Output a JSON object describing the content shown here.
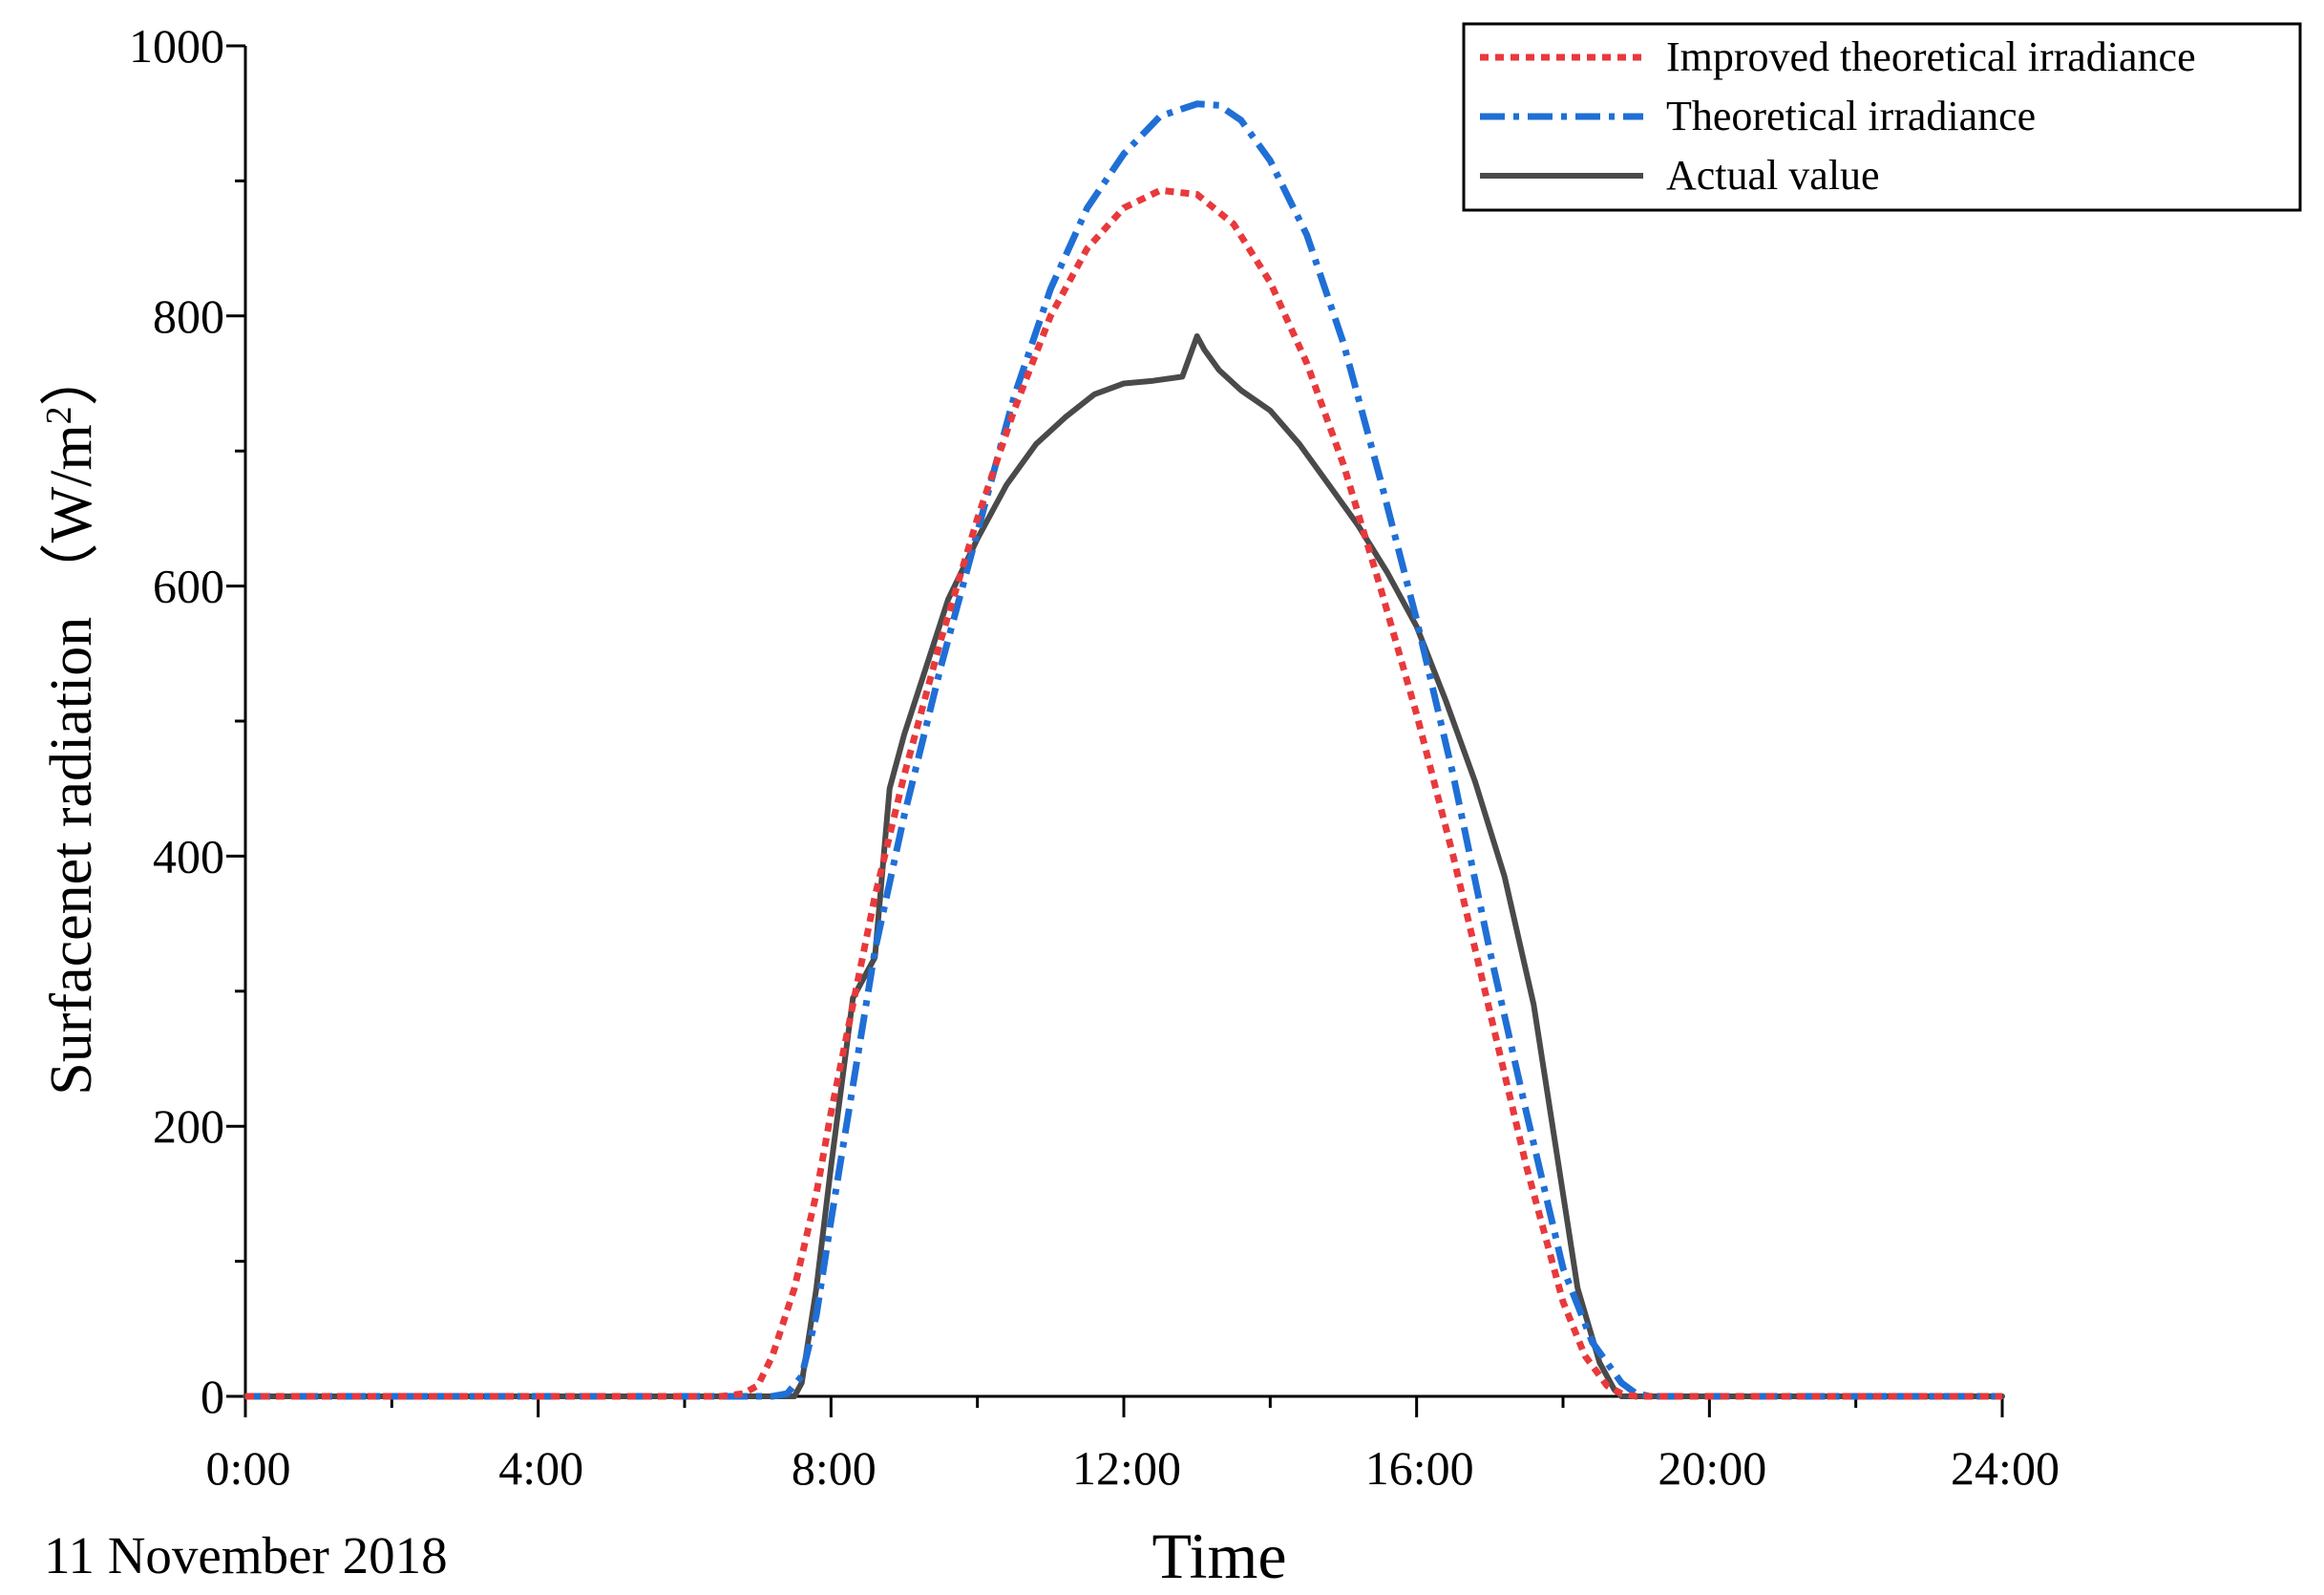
{
  "chart_data": {
    "type": "line",
    "title": "",
    "xlabel": "Time",
    "ylabel": "Surfacenet radiation",
    "ylabel_unit_open": "（W/m",
    "ylabel_unit_sup": "2",
    "ylabel_unit_close": "）",
    "date_label": "11 November 2018",
    "xlim": [
      0,
      24
    ],
    "ylim": [
      0,
      1000
    ],
    "x_ticks": [
      0,
      4,
      8,
      12,
      16,
      20,
      24
    ],
    "x_tick_labels": [
      "0:00",
      "4:00",
      "8:00",
      "12:00",
      "16:00",
      "20:00",
      "24:00"
    ],
    "x_minor_ticks": [
      2,
      6,
      10,
      14,
      18,
      22
    ],
    "y_ticks": [
      0,
      200,
      400,
      600,
      800,
      1000
    ],
    "y_tick_labels": [
      "0",
      "200",
      "400",
      "600",
      "800",
      "1000"
    ],
    "y_minor_ticks": [
      100,
      300,
      500,
      700,
      900
    ],
    "legend_position": "top-right",
    "series": [
      {
        "name": "Improved theoretical irradiance",
        "color": "#e8393c",
        "style": "dotted",
        "x": [
          0,
          6.5,
          6.8,
          7.0,
          7.2,
          7.5,
          7.8,
          8.0,
          8.3,
          8.6,
          9.0,
          9.5,
          10.0,
          10.5,
          11.0,
          11.5,
          12.0,
          12.5,
          13.0,
          13.5,
          14.0,
          14.5,
          15.0,
          15.5,
          16.0,
          16.5,
          17.0,
          17.5,
          18.0,
          18.3,
          18.6,
          18.8,
          19.0,
          24
        ],
        "values": [
          0,
          0,
          2,
          8,
          30,
          80,
          150,
          210,
          290,
          370,
          460,
          560,
          650,
          730,
          800,
          850,
          880,
          893,
          890,
          868,
          825,
          765,
          690,
          600,
          505,
          400,
          285,
          170,
          70,
          30,
          8,
          2,
          0,
          0
        ]
      },
      {
        "name": "Theoretical irradiance",
        "color": "#1f6fd6",
        "style": "dashdot",
        "x": [
          0,
          7.2,
          7.4,
          7.6,
          7.8,
          8.0,
          8.3,
          8.6,
          9.0,
          9.5,
          10.0,
          10.5,
          11.0,
          11.5,
          12.0,
          12.5,
          13.0,
          13.3,
          13.6,
          14.0,
          14.5,
          15.0,
          15.5,
          16.0,
          16.5,
          17.0,
          17.5,
          18.0,
          18.4,
          18.8,
          19.0,
          19.2,
          24
        ],
        "values": [
          0,
          0,
          2,
          15,
          60,
          130,
          230,
          330,
          430,
          540,
          640,
          740,
          820,
          880,
          920,
          948,
          957,
          956,
          945,
          915,
          860,
          780,
          680,
          575,
          460,
          330,
          210,
          95,
          40,
          10,
          2,
          0,
          0
        ]
      },
      {
        "name": "Actual value",
        "color": "#4a4a4a",
        "style": "solid",
        "x": [
          0,
          7.5,
          7.6,
          7.8,
          8.0,
          8.3,
          8.6,
          8.8,
          9.0,
          9.3,
          9.6,
          10.0,
          10.4,
          10.8,
          11.2,
          11.6,
          12.0,
          12.4,
          12.8,
          13.0,
          13.1,
          13.3,
          13.6,
          14.0,
          14.4,
          14.8,
          15.2,
          15.6,
          16.0,
          16.4,
          16.8,
          17.2,
          17.6,
          18.0,
          18.2,
          18.5,
          18.7,
          18.8,
          24
        ],
        "values": [
          0,
          0,
          10,
          80,
          170,
          295,
          325,
          450,
          490,
          540,
          590,
          635,
          675,
          705,
          725,
          742,
          750,
          752,
          755,
          785,
          775,
          760,
          745,
          730,
          705,
          675,
          645,
          610,
          570,
          515,
          455,
          385,
          290,
          150,
          80,
          25,
          5,
          0,
          0
        ]
      }
    ]
  }
}
